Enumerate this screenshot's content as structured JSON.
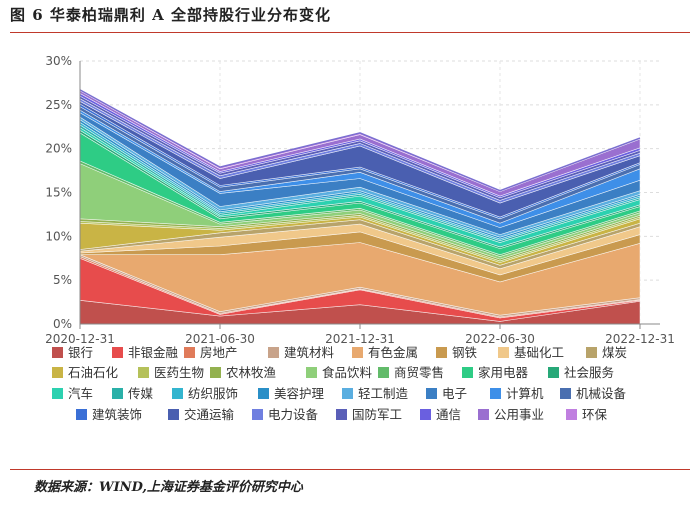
{
  "figure": {
    "title": "图 6 华泰柏瑞鼎利 A 全部持股行业分布变化",
    "source": "数据来源：WIND,上海证券基金评价研究中心"
  },
  "chart_data": {
    "type": "area",
    "stacked": true,
    "x": [
      "2020-12-31",
      "2021-06-30",
      "2021-12-31",
      "2022-06-30",
      "2022-12-31"
    ],
    "ylim": [
      0,
      30
    ],
    "yticks": [
      "0%",
      "5%",
      "10%",
      "15%",
      "20%",
      "25%",
      "30%"
    ],
    "grid": true,
    "legend_position": "bottom",
    "series": [
      {
        "name": "银行",
        "color": "#c0504d",
        "values": [
          2.7,
          0.9,
          2.2,
          0.3,
          2.6
        ]
      },
      {
        "name": "非银金融",
        "color": "#e74c4c",
        "values": [
          4.8,
          0.2,
          1.7,
          0.4,
          0.1
        ]
      },
      {
        "name": "房地产",
        "color": "#e07b5a",
        "values": [
          0.2,
          0.1,
          0.1,
          0.1,
          0.1
        ]
      },
      {
        "name": "建筑材料",
        "color": "#c8a38a",
        "values": [
          0.2,
          0.2,
          0.2,
          0.2,
          0.2
        ]
      },
      {
        "name": "有色金属",
        "color": "#e8a96f",
        "values": [
          0.0,
          6.5,
          5.1,
          3.8,
          6.2
        ]
      },
      {
        "name": "钢铁",
        "color": "#c99a4f",
        "values": [
          0.2,
          1.0,
          1.2,
          0.8,
          1.0
        ]
      },
      {
        "name": "基础化工",
        "color": "#f0c88a",
        "values": [
          0.2,
          1.0,
          0.9,
          0.7,
          0.9
        ]
      },
      {
        "name": "煤炭",
        "color": "#b8a36a",
        "values": [
          0.2,
          0.5,
          0.5,
          0.4,
          0.4
        ]
      },
      {
        "name": "石油石化",
        "color": "#c9b445",
        "values": [
          3.0,
          0.3,
          0.3,
          0.3,
          0.5
        ]
      },
      {
        "name": "医药生物",
        "color": "#b5c15a",
        "values": [
          0.2,
          0.2,
          0.2,
          0.2,
          0.2
        ]
      },
      {
        "name": "农林牧渔",
        "color": "#93b14f",
        "values": [
          0.3,
          0.2,
          0.2,
          0.2,
          0.2
        ]
      },
      {
        "name": "食品饮料",
        "color": "#8fcf7a",
        "values": [
          6.3,
          0.3,
          0.4,
          0.3,
          0.3
        ]
      },
      {
        "name": "商贸零售",
        "color": "#62bb6a",
        "values": [
          0.3,
          0.2,
          0.2,
          0.2,
          0.2
        ]
      },
      {
        "name": "家用电器",
        "color": "#2ecc85",
        "values": [
          3.2,
          0.4,
          0.6,
          0.7,
          0.5
        ]
      },
      {
        "name": "社会服务",
        "color": "#27a878",
        "values": [
          0.3,
          0.2,
          0.2,
          0.2,
          0.2
        ]
      },
      {
        "name": "汽车",
        "color": "#2cd1b0",
        "values": [
          0.3,
          0.2,
          0.6,
          0.5,
          0.6
        ]
      },
      {
        "name": "传媒",
        "color": "#2ab0a8",
        "values": [
          0.3,
          0.2,
          0.2,
          0.2,
          0.2
        ]
      },
      {
        "name": "纺织服饰",
        "color": "#33b5cf",
        "values": [
          0.3,
          0.2,
          0.2,
          0.2,
          0.2
        ]
      },
      {
        "name": "美容护理",
        "color": "#2a8fc7",
        "values": [
          0.3,
          0.2,
          0.2,
          0.2,
          0.2
        ]
      },
      {
        "name": "轻工制造",
        "color": "#5aaee0",
        "values": [
          0.3,
          0.4,
          0.4,
          0.3,
          0.4
        ]
      },
      {
        "name": "电子",
        "color": "#3b7fc4",
        "values": [
          0.5,
          1.5,
          1.0,
          0.8,
          1.2
        ]
      },
      {
        "name": "计算机",
        "color": "#3e8fe8",
        "values": [
          0.3,
          0.2,
          0.7,
          0.5,
          1.3
        ]
      },
      {
        "name": "机械设备",
        "color": "#4a6fb0",
        "values": [
          0.4,
          0.5,
          0.4,
          0.5,
          0.5
        ]
      },
      {
        "name": "建筑装饰",
        "color": "#3a6fd6",
        "values": [
          0.3,
          0.2,
          0.2,
          0.2,
          0.2
        ]
      },
      {
        "name": "交通运输",
        "color": "#4a5fb0",
        "values": [
          0.3,
          0.8,
          2.4,
          1.6,
          0.8
        ]
      },
      {
        "name": "电力设备",
        "color": "#6f7fe0",
        "values": [
          0.3,
          0.3,
          0.3,
          0.3,
          0.3
        ]
      },
      {
        "name": "国防军工",
        "color": "#5a5fb8",
        "values": [
          0.3,
          0.3,
          0.3,
          0.3,
          0.3
        ]
      },
      {
        "name": "通信",
        "color": "#6a5fe0",
        "values": [
          0.3,
          0.2,
          0.2,
          0.2,
          0.3
        ]
      },
      {
        "name": "公用事业",
        "color": "#9a6fd0",
        "values": [
          0.3,
          0.3,
          0.5,
          0.5,
          1.0
        ]
      },
      {
        "name": "环保",
        "color": "#c07fe0",
        "values": [
          0.1,
          0.2,
          0.2,
          0.1,
          0.1
        ]
      }
    ]
  }
}
